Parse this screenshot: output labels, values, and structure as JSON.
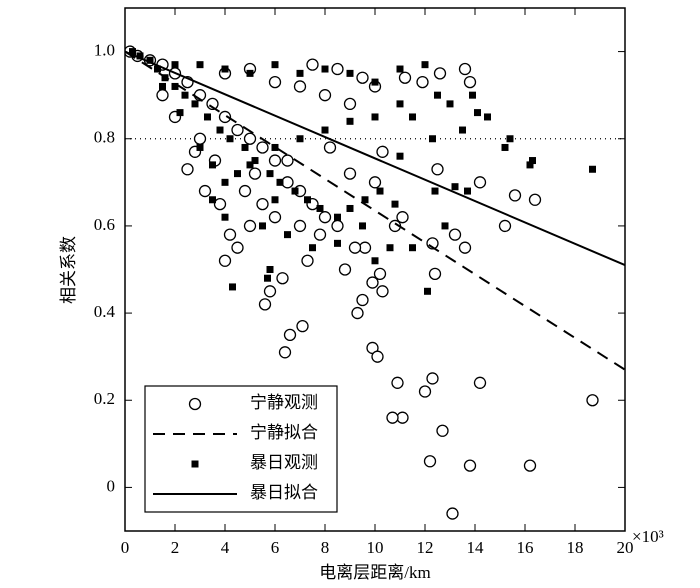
{
  "chart_data": {
    "type": "scatter",
    "x_label": "电离层距离/km",
    "y_label": "相关系数",
    "x_multiplier": "×10³",
    "xlim": [
      0,
      20
    ],
    "ylim": [
      -0.1,
      1.1
    ],
    "xticks": [
      0,
      2,
      4,
      6,
      8,
      10,
      12,
      14,
      16,
      18,
      20
    ],
    "yticks": [
      0,
      0.2,
      0.4,
      0.6,
      0.8,
      {
        "value": 1,
        "label": "1.0"
      }
    ],
    "reference_line": 0.8,
    "legend": "bottom-left",
    "series": [
      {
        "name": "宁静观测",
        "kind": "scatter",
        "marker": "circle",
        "color": "#000000",
        "x": [
          13.1,
          16.2,
          13.8,
          12.2,
          18.7,
          11.1,
          10.7,
          12.7,
          14.2,
          12.3,
          10.9,
          12,
          9.9,
          10.1,
          6.4,
          6.6,
          7.1,
          9.3,
          9.5,
          10.3,
          10.2,
          9.9,
          8.8,
          5.6,
          5.8,
          6.3,
          7.3,
          12.4,
          13.2,
          13.6,
          12.3,
          15.2,
          15.6,
          16.4,
          14.2,
          12.5,
          13.6,
          13.8,
          12.6,
          11.9,
          11.2,
          10.3,
          11.1,
          10.8,
          9.6,
          9.2,
          0.2,
          0.5,
          1,
          1.5,
          2,
          2.5,
          3,
          3.5,
          4,
          4.5,
          5,
          5.5,
          6,
          6.5,
          7,
          7.5,
          8,
          8.5,
          2.5,
          3.2,
          3.8,
          4.2,
          4.5,
          4,
          5,
          5.5,
          6,
          7,
          7.8,
          3,
          2,
          1.5,
          4,
          5,
          6,
          7,
          8,
          9,
          9.5,
          10,
          8.5,
          7.5,
          6.5,
          5.2,
          4.8,
          3.6,
          2.8,
          8.2,
          9,
          10
        ],
        "values": [
          -0.06,
          0.05,
          0.05,
          0.06,
          0.2,
          0.16,
          0.16,
          0.13,
          0.24,
          0.25,
          0.24,
          0.22,
          0.32,
          0.3,
          0.31,
          0.35,
          0.37,
          0.4,
          0.43,
          0.45,
          0.49,
          0.47,
          0.5,
          0.42,
          0.45,
          0.48,
          0.52,
          0.49,
          0.58,
          0.55,
          0.56,
          0.6,
          0.67,
          0.66,
          0.7,
          0.73,
          0.96,
          0.93,
          0.95,
          0.93,
          0.94,
          0.77,
          0.62,
          0.6,
          0.55,
          0.55,
          1.0,
          0.99,
          0.98,
          0.97,
          0.95,
          0.93,
          0.9,
          0.88,
          0.85,
          0.82,
          0.8,
          0.78,
          0.75,
          0.7,
          0.68,
          0.65,
          0.62,
          0.6,
          0.73,
          0.68,
          0.65,
          0.58,
          0.55,
          0.52,
          0.6,
          0.65,
          0.62,
          0.6,
          0.58,
          0.8,
          0.85,
          0.9,
          0.95,
          0.96,
          0.93,
          0.92,
          0.9,
          0.88,
          0.94,
          0.92,
          0.96,
          0.97,
          0.75,
          0.72,
          0.68,
          0.75,
          0.77,
          0.78,
          0.72,
          0.7
        ]
      },
      {
        "name": "宁静拟合",
        "kind": "line",
        "dash": "12 8",
        "color": "#000000",
        "x": [
          0,
          20
        ],
        "values": [
          1.0,
          0.27
        ]
      },
      {
        "name": "暴日观测",
        "kind": "scatter",
        "marker": "square",
        "color": "#000000",
        "x": [
          18.7,
          16.3,
          16.2,
          15.4,
          15.2,
          14.1,
          13.5,
          12.3,
          11,
          13.9,
          14.5,
          13,
          12.5,
          11.5,
          13.7,
          13.2,
          12.4,
          12.8,
          10.8,
          10.6,
          11.5,
          9.5,
          12.1,
          10,
          5.8,
          4.3,
          5.7,
          0.3,
          0.6,
          1,
          1.3,
          1.6,
          2,
          2.4,
          2.8,
          3.3,
          3.8,
          4.2,
          4.8,
          5.2,
          5.8,
          6.2,
          6.8,
          7.3,
          7.8,
          8.5,
          9,
          9.6,
          10.2,
          2,
          3,
          4,
          5,
          6,
          7,
          8,
          9,
          10,
          11,
          12,
          1.5,
          2.2,
          3,
          3.5,
          4,
          4.5,
          5,
          6,
          7,
          8,
          9,
          10,
          11,
          4,
          3.5,
          5.5,
          6.5,
          7.5,
          8.5,
          6
        ],
        "values": [
          0.73,
          0.75,
          0.74,
          0.8,
          0.78,
          0.86,
          0.82,
          0.8,
          0.76,
          0.9,
          0.85,
          0.88,
          0.9,
          0.85,
          0.68,
          0.69,
          0.68,
          0.6,
          0.65,
          0.55,
          0.55,
          0.6,
          0.45,
          0.52,
          0.5,
          0.46,
          0.48,
          1.0,
          0.99,
          0.98,
          0.96,
          0.94,
          0.92,
          0.9,
          0.88,
          0.85,
          0.82,
          0.8,
          0.78,
          0.75,
          0.72,
          0.7,
          0.68,
          0.66,
          0.64,
          0.62,
          0.64,
          0.66,
          0.68,
          0.97,
          0.97,
          0.96,
          0.95,
          0.97,
          0.95,
          0.96,
          0.95,
          0.93,
          0.96,
          0.97,
          0.92,
          0.86,
          0.78,
          0.74,
          0.7,
          0.72,
          0.74,
          0.78,
          0.8,
          0.82,
          0.84,
          0.85,
          0.88,
          0.62,
          0.66,
          0.6,
          0.58,
          0.55,
          0.56,
          0.66
        ]
      },
      {
        "name": "暴日拟合",
        "kind": "line",
        "dash": null,
        "color": "#000000",
        "x": [
          0,
          20
        ],
        "values": [
          1.0,
          0.51
        ]
      }
    ]
  }
}
